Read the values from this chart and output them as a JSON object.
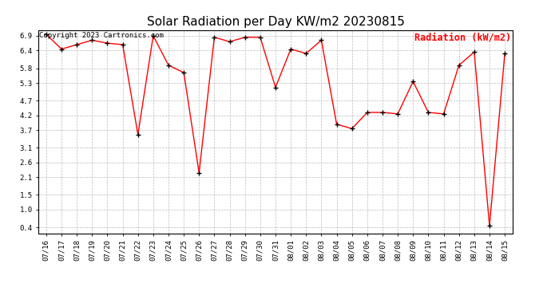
{
  "title": "Solar Radiation per Day KW/m2 20230815",
  "copyright_text": "Copyright 2023 Cartronics.com",
  "legend_label": "Radiation (kW/m2)",
  "x_labels": [
    "07/16",
    "07/17",
    "07/18",
    "07/19",
    "07/20",
    "07/21",
    "07/22",
    "07/23",
    "07/24",
    "07/25",
    "07/26",
    "07/27",
    "07/28",
    "07/29",
    "07/30",
    "07/31",
    "08/01",
    "08/02",
    "08/03",
    "08/04",
    "08/05",
    "08/06",
    "08/07",
    "08/08",
    "08/09",
    "08/10",
    "08/11",
    "08/12",
    "08/13",
    "08/14",
    "08/15"
  ],
  "y_values": [
    6.95,
    6.45,
    6.6,
    6.75,
    6.65,
    6.6,
    3.55,
    6.9,
    5.9,
    5.65,
    2.25,
    6.85,
    6.7,
    6.85,
    6.85,
    5.15,
    6.45,
    6.3,
    6.75,
    3.9,
    3.75,
    4.3,
    4.3,
    4.25,
    5.35,
    4.3,
    4.25,
    5.9,
    6.35,
    0.45,
    6.3
  ],
  "line_color": "red",
  "marker_color": "black",
  "background_color": "white",
  "grid_color": "#aaaaaa",
  "y_ticks": [
    0.4,
    1.0,
    1.5,
    2.1,
    2.6,
    3.1,
    3.7,
    4.2,
    4.7,
    5.3,
    5.8,
    6.4,
    6.9
  ],
  "ylim": [
    0.2,
    7.1
  ],
  "title_fontsize": 11,
  "copyright_fontsize": 6.5,
  "legend_fontsize": 8.5,
  "tick_fontsize": 6.5
}
